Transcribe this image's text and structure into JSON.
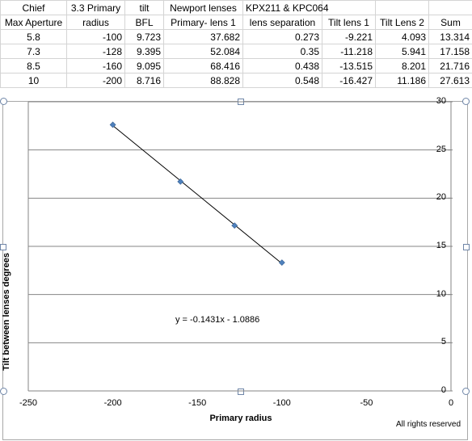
{
  "sheet": {
    "header1": [
      "Chief",
      "3.3 Primary",
      "tilt",
      "Newport lenses",
      "KPX211 & KPC064",
      "",
      "",
      ""
    ],
    "header2": [
      "Max Aperture",
      "radius",
      "BFL",
      "Primary- lens 1",
      "lens separation",
      "Tilt lens 1",
      "Tilt Lens 2",
      "Sum"
    ],
    "rows": [
      [
        "5.8",
        "-100",
        "9.723",
        "37.682",
        "0.273",
        "-9.221",
        "4.093",
        "13.314"
      ],
      [
        "7.3",
        "-128",
        "9.395",
        "52.084",
        "0.35",
        "-11.218",
        "5.941",
        "17.158"
      ],
      [
        "8.5",
        "-160",
        "9.095",
        "68.416",
        "0.438",
        "-13.515",
        "8.201",
        "21.716"
      ],
      [
        "10",
        "-200",
        "8.716",
        "88.828",
        "0.548",
        "-16.427",
        "11.186",
        "27.613"
      ]
    ]
  },
  "chart_data": {
    "type": "scatter",
    "x": [
      -100,
      -128,
      -160,
      -200
    ],
    "y": [
      13.314,
      17.158,
      21.716,
      27.613
    ],
    "xlabel": "Primary radius",
    "ylabel": "Tilt between lenses degrees",
    "xlim": [
      -250,
      0
    ],
    "ylim": [
      0,
      30
    ],
    "xticks": [
      "-250",
      "-200",
      "-150",
      "-100",
      "-50",
      "0"
    ],
    "yticks": [
      "0",
      "5",
      "10",
      "15",
      "20",
      "25",
      "30"
    ],
    "trendline": {
      "slope": -0.1431,
      "intercept": -1.0886,
      "label": "y = -0.1431x - 1.0886"
    },
    "grid": "horizontal",
    "marker_color": "#4f81bd",
    "line_color": "#000000"
  },
  "footer": "All rights reserved"
}
